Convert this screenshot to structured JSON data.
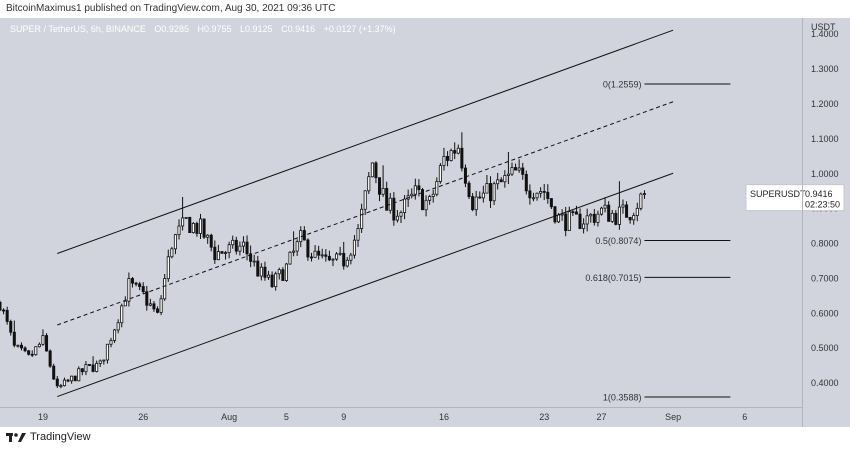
{
  "header": {
    "published_text": "BitcoinMaximus1 published on TradingView.com, Aug 30, 2021 09:36 UTC"
  },
  "footer": {
    "brand": "TradingView",
    "logo_icon": "tradingview-logo-icon"
  },
  "legend": {
    "symbol": "SUPER / TetherUS, 6h, BINANCE",
    "o": "0.9285",
    "h": "0.9755",
    "l": "0.9125",
    "c": "0.9416",
    "change": "+0.0127 (+1.37%)"
  },
  "colors": {
    "plot_bg": "#d1d4dc",
    "axis_bg": "#d1d4dc",
    "candle": "#111111",
    "candle_up_body": "#ffffff",
    "line": "#111111",
    "label": "#333333",
    "legend_text": "#ffffff"
  },
  "chart_data": {
    "type": "candlestick",
    "title": "SUPER / TetherUS, 6h, BINANCE",
    "y_axis": {
      "unit_label": "USDT",
      "min": 0.33,
      "max": 1.445,
      "ticks": [
        0.4,
        0.5,
        0.6,
        0.7,
        0.8,
        0.9,
        1.0,
        1.1,
        1.2,
        1.3,
        1.4
      ],
      "tick_labels": [
        "0.4000",
        "0.5000",
        "0.6000",
        "0.7000",
        "0.8000",
        "0.9000",
        "1.0000",
        "1.1000",
        "1.2000",
        "1.3000",
        "1.4000"
      ],
      "side": "right"
    },
    "x_axis": {
      "start": "2021-07-16",
      "end": "2021-09-10",
      "ticks": [
        {
          "date": "2021-07-19",
          "label": "19"
        },
        {
          "date": "2021-07-26",
          "label": "26"
        },
        {
          "date": "2021-08-01",
          "label": "Aug"
        },
        {
          "date": "2021-08-05",
          "label": "5"
        },
        {
          "date": "2021-08-09",
          "label": "9"
        },
        {
          "date": "2021-08-16",
          "label": "16"
        },
        {
          "date": "2021-08-23",
          "label": "23"
        },
        {
          "date": "2021-08-27",
          "label": "27"
        },
        {
          "date": "2021-09-01",
          "label": "Sep"
        },
        {
          "date": "2021-09-06",
          "label": "6"
        }
      ]
    },
    "last_price": {
      "symbol": "SUPERUSDT",
      "value": "0.9416",
      "countdown": "02:23:50",
      "price": 0.9416
    },
    "grid": false,
    "price_path": [
      [
        "2021-07-16",
        0.63
      ],
      [
        "2021-07-17",
        0.5
      ],
      [
        "2021-07-18",
        0.47
      ],
      [
        "2021-07-19",
        0.52
      ],
      [
        "2021-07-20",
        0.38
      ],
      [
        "2021-07-21",
        0.41
      ],
      [
        "2021-07-22",
        0.44
      ],
      [
        "2021-07-23",
        0.45
      ],
      [
        "2021-07-24",
        0.56
      ],
      [
        "2021-07-25",
        0.68
      ],
      [
        "2021-07-26",
        0.65
      ],
      [
        "2021-07-27",
        0.59
      ],
      [
        "2021-07-28",
        0.8
      ],
      [
        "2021-07-29",
        0.86
      ],
      [
        "2021-07-30",
        0.84
      ],
      [
        "2021-07-31",
        0.77
      ],
      [
        "2021-08-01",
        0.78
      ],
      [
        "2021-08-02",
        0.79
      ],
      [
        "2021-08-03",
        0.72
      ],
      [
        "2021-08-04",
        0.68
      ],
      [
        "2021-08-05",
        0.73
      ],
      [
        "2021-08-06",
        0.81
      ],
      [
        "2021-08-07",
        0.76
      ],
      [
        "2021-08-08",
        0.74
      ],
      [
        "2021-08-09",
        0.75
      ],
      [
        "2021-08-10",
        0.83
      ],
      [
        "2021-08-11",
        1.03
      ],
      [
        "2021-08-12",
        0.9
      ],
      [
        "2021-08-13",
        0.89
      ],
      [
        "2021-08-14",
        0.94
      ],
      [
        "2021-08-15",
        0.91
      ],
      [
        "2021-08-16",
        1.04
      ],
      [
        "2021-08-17",
        1.08
      ],
      [
        "2021-08-18",
        0.92
      ],
      [
        "2021-08-19",
        0.94
      ],
      [
        "2021-08-20",
        0.97
      ],
      [
        "2021-08-21",
        1.0
      ],
      [
        "2021-08-22",
        0.96
      ],
      [
        "2021-08-23",
        0.95
      ],
      [
        "2021-08-24",
        0.87
      ],
      [
        "2021-08-25",
        0.86
      ],
      [
        "2021-08-26",
        0.87
      ],
      [
        "2021-08-27",
        0.89
      ],
      [
        "2021-08-28",
        0.88
      ],
      [
        "2021-08-29",
        0.89
      ],
      [
        "2021-08-30",
        0.9416
      ]
    ],
    "channel": {
      "upper": [
        [
          "2021-07-20",
          0.77
        ],
        [
          "2021-09-01",
          1.41
        ]
      ],
      "middle": [
        [
          "2021-07-20",
          0.565
        ],
        [
          "2021-09-01",
          1.205
        ]
      ],
      "lower": [
        [
          "2021-07-20",
          0.36
        ],
        [
          "2021-09-01",
          1.0
        ]
      ]
    },
    "fib_levels": [
      {
        "label": "0(1.2559)",
        "value": 1.2559
      },
      {
        "label": "0.5(0.8074)",
        "value": 0.8074
      },
      {
        "label": "0.618(0.7015)",
        "value": 0.7015
      },
      {
        "label": "1(0.3588)",
        "value": 0.3588
      }
    ],
    "fib_range": [
      "2021-08-30",
      "2021-09-05"
    ]
  }
}
